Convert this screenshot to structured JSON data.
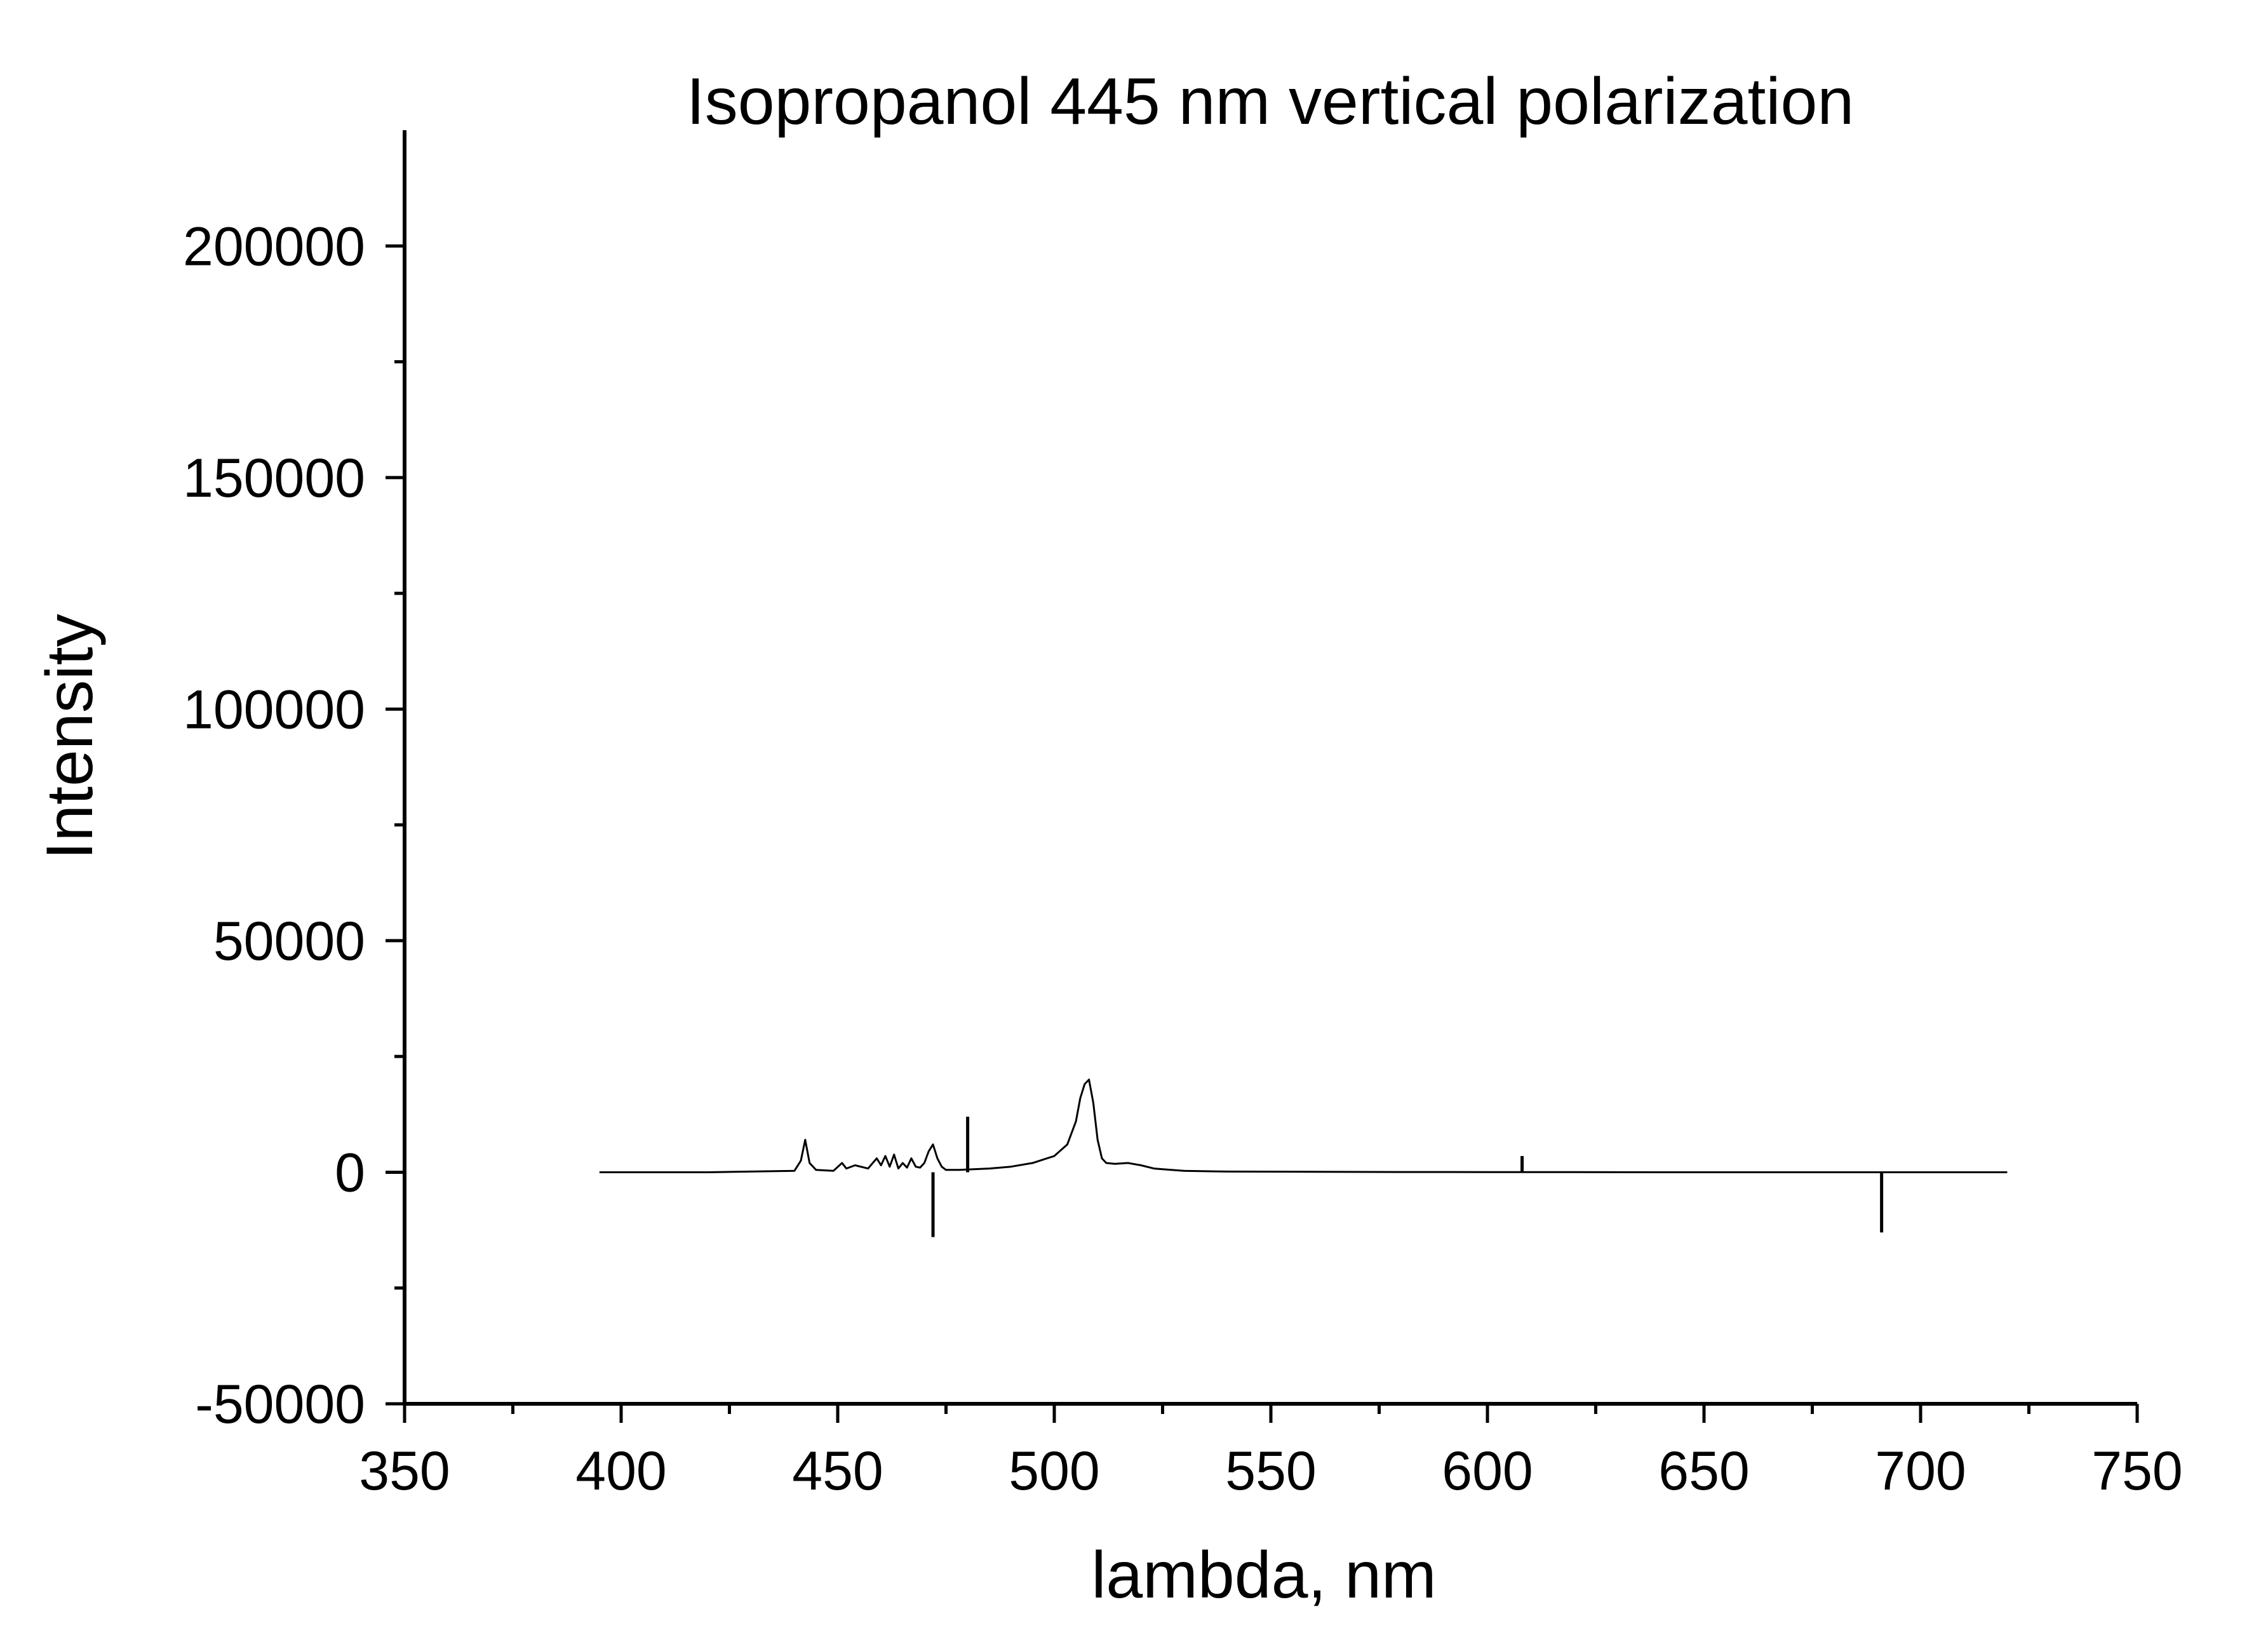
{
  "chart_data": {
    "type": "line",
    "title": "Isopropanol 445 nm vertical polarization",
    "xlabel": "lambda, nm",
    "ylabel": "Intensity",
    "xlim": [
      350,
      750
    ],
    "ylim": [
      -50000,
      225000
    ],
    "xticks": [
      350,
      400,
      450,
      500,
      550,
      600,
      650,
      700,
      750
    ],
    "xtick_labels": [
      "350",
      "400",
      "450",
      "500",
      "550",
      "600",
      "650",
      "700",
      "750"
    ],
    "yticks": [
      -50000,
      0,
      50000,
      100000,
      150000,
      200000
    ],
    "ytick_labels": [
      "-50000",
      "0",
      "50000",
      "100000",
      "150000",
      "200000"
    ],
    "grid": false,
    "legend": "none",
    "line_color": "#000000",
    "series": [
      {
        "x": [
          395,
          420,
          440,
          441.5,
          442.5,
          443.5,
          445,
          449,
          451,
          452,
          454,
          457,
          459,
          460,
          461,
          462,
          463,
          464,
          465,
          466,
          467,
          468,
          469,
          470,
          471,
          472,
          473,
          474,
          475,
          478,
          480,
          485,
          490,
          495,
          500,
          503,
          505,
          506,
          507,
          508,
          509,
          510,
          511,
          512,
          514,
          517,
          520,
          523,
          527,
          530,
          540,
          560,
          580,
          600,
          620,
          640,
          660,
          680,
          700,
          720
        ],
        "y": [
          0,
          0,
          300,
          2500,
          7000,
          2000,
          500,
          300,
          2000,
          800,
          1500,
          800,
          3000,
          1500,
          3500,
          1200,
          3800,
          800,
          2000,
          1000,
          3000,
          1200,
          1000,
          2000,
          4500,
          6000,
          3000,
          1200,
          500,
          500,
          600,
          800,
          1200,
          2000,
          3500,
          6000,
          11000,
          16000,
          19000,
          20000,
          15000,
          7000,
          3000,
          2000,
          1800,
          2000,
          1500,
          800,
          500,
          300,
          150,
          100,
          50,
          30,
          20,
          0,
          0,
          0,
          0,
          0
        ]
      }
    ],
    "spikes": [
      {
        "x": 472,
        "y": -14000
      },
      {
        "x": 480,
        "y": 12000
      },
      {
        "x": 608,
        "y": 3500
      },
      {
        "x": 691,
        "y": -13000
      }
    ]
  }
}
